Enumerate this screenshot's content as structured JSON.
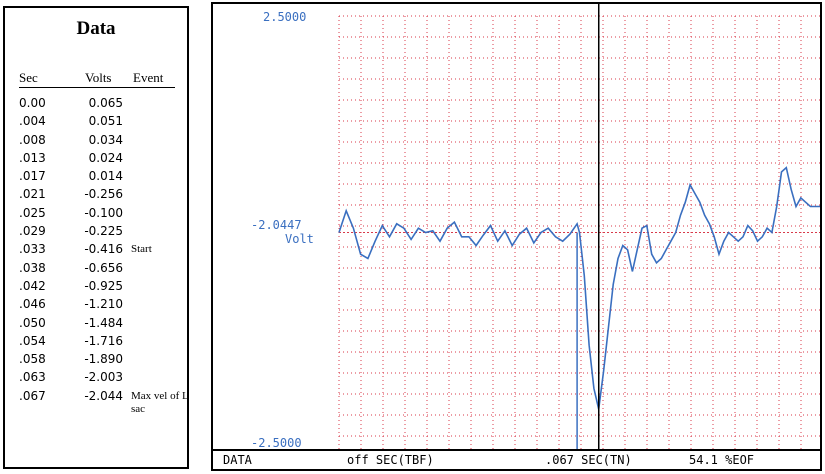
{
  "panel": {
    "title": "Data",
    "headers": {
      "sec": "Sec",
      "volts": "Volts",
      "event": "Event"
    },
    "rows": [
      {
        "sec": "0.00",
        "volts": "0.065",
        "event": ""
      },
      {
        "sec": ".004",
        "volts": "0.051",
        "event": ""
      },
      {
        "sec": ".008",
        "volts": "0.034",
        "event": ""
      },
      {
        "sec": ".013",
        "volts": "0.024",
        "event": ""
      },
      {
        "sec": ".017",
        "volts": "0.014",
        "event": ""
      },
      {
        "sec": ".021",
        "volts": "-0.256",
        "event": ""
      },
      {
        "sec": ".025",
        "volts": "-0.100",
        "event": ""
      },
      {
        "sec": ".029",
        "volts": "-0.225",
        "event": ""
      },
      {
        "sec": ".033",
        "volts": "-0.416",
        "event": "Start"
      },
      {
        "sec": ".038",
        "volts": "-0.656",
        "event": ""
      },
      {
        "sec": ".042",
        "volts": "-0.925",
        "event": ""
      },
      {
        "sec": ".046",
        "volts": "-1.210",
        "event": ""
      },
      {
        "sec": ".050",
        "volts": "-1.484",
        "event": ""
      },
      {
        "sec": ".054",
        "volts": "-1.716",
        "event": ""
      },
      {
        "sec": ".058",
        "volts": "-1.890",
        "event": ""
      },
      {
        "sec": ".063",
        "volts": "-2.003",
        "event": ""
      },
      {
        "sec": ".067",
        "volts": "-2.044",
        "event": "Max vel of L sac"
      }
    ]
  },
  "chart": {
    "y_top": "2.5000",
    "y_bottom": "-2.5000",
    "cursor_value": "-2.0447",
    "cursor_unit": "Volt",
    "status": {
      "mode": "DATA",
      "left": "off SEC(TBF)",
      "mid": ".067 SEC(TN)",
      "right": "54.1 %EOF"
    },
    "colors": {
      "grid": "#d83a4a",
      "trace": "#3a6fc0",
      "cursor": "#000000"
    }
  },
  "chart_data": {
    "type": "line",
    "ylim": [
      -2.5,
      2.5
    ],
    "ylabel": "Volt",
    "series": [
      {
        "x": [
          0,
          3,
          6,
          9,
          12,
          15,
          18,
          21,
          24,
          27,
          30,
          33,
          36,
          39,
          42,
          45,
          48,
          51,
          54,
          57,
          60,
          63,
          66,
          69,
          72,
          75,
          78,
          81,
          84,
          87,
          90,
          93,
          96,
          99,
          100,
          102,
          104,
          106,
          108,
          110,
          112,
          114,
          116,
          118,
          120,
          122,
          124,
          126,
          128,
          130,
          132,
          134,
          136,
          138,
          140,
          142,
          144,
          146,
          148,
          150,
          152,
          154,
          156,
          158,
          160,
          162,
          164,
          166,
          168,
          170,
          172,
          174,
          176,
          178,
          180,
          182,
          184,
          186,
          188,
          190,
          192,
          194,
          196,
          198,
          200
        ],
        "values": [
          0.0,
          0.25,
          0.05,
          -0.25,
          -0.3,
          -0.1,
          0.08,
          -0.05,
          0.1,
          0.05,
          -0.08,
          0.05,
          0.0,
          0.02,
          -0.1,
          0.05,
          0.12,
          -0.05,
          -0.05,
          -0.15,
          -0.03,
          0.08,
          -0.1,
          0.02,
          -0.15,
          -0.02,
          0.05,
          -0.12,
          0.0,
          0.05,
          -0.05,
          -0.1,
          -0.02,
          0.1,
          0.0,
          -0.5,
          -1.3,
          -1.8,
          -2.04,
          -1.6,
          -1.1,
          -0.6,
          -0.3,
          -0.15,
          -0.2,
          -0.45,
          -0.2,
          0.05,
          0.08,
          -0.25,
          -0.35,
          -0.3,
          -0.2,
          -0.1,
          0.0,
          0.2,
          0.35,
          0.55,
          0.45,
          0.35,
          0.2,
          0.1,
          -0.05,
          -0.25,
          -0.1,
          0.0,
          -0.05,
          -0.1,
          -0.05,
          0.08,
          0.02,
          -0.1,
          -0.05,
          0.05,
          0.0,
          0.3,
          0.7,
          0.75,
          0.5,
          0.3,
          0.4,
          0.35,
          0.3,
          0.3,
          0.3
        ]
      }
    ],
    "cursor_x": 108
  }
}
